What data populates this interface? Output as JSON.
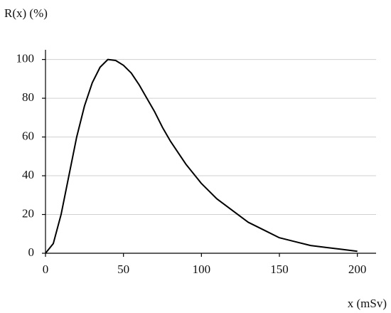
{
  "chart_data": {
    "type": "line",
    "ylabel": "R(x) (%)",
    "xlabel": "x (mSv)",
    "x": [
      0,
      5,
      10,
      15,
      20,
      25,
      30,
      35,
      40,
      45,
      50,
      55,
      60,
      65,
      70,
      75,
      80,
      90,
      100,
      110,
      120,
      130,
      140,
      150,
      160,
      170,
      180,
      190,
      200
    ],
    "series": [
      {
        "color": "#000000",
        "values": [
          0,
          5,
          20,
          40,
          60,
          76,
          88,
          96,
          100,
          99.5,
          97,
          93,
          87,
          80,
          73,
          65,
          58,
          46,
          36,
          28,
          22,
          16,
          12,
          8,
          6,
          4,
          3,
          2,
          1
        ]
      }
    ],
    "xlim": [
      0,
      212
    ],
    "ylim": [
      0,
      105
    ],
    "xticks": [
      0,
      50,
      100,
      150,
      200
    ],
    "yticks": [
      0,
      20,
      40,
      60,
      80,
      100
    ],
    "grid": true
  }
}
